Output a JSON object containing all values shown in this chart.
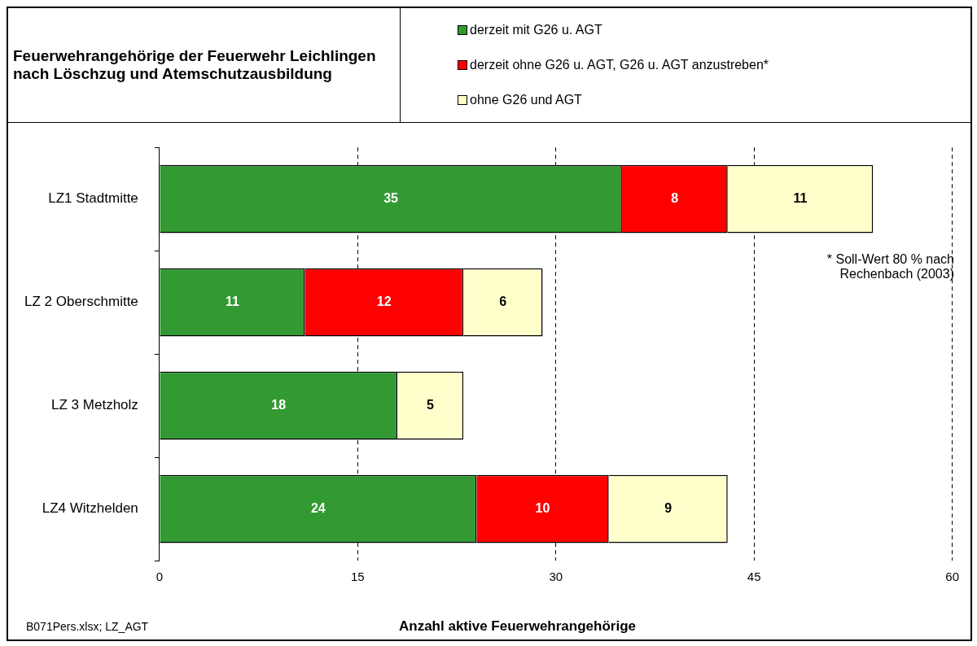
{
  "chart_data": {
    "type": "bar",
    "orientation": "horizontal",
    "stacked": true,
    "title": "Feuerwehrangehörige der Feuerwehr Leichlingen\nnach Löschzug und Atemschutzausbildung",
    "xlabel": "Anzahl aktive  Feuerwehrangehörige",
    "categories": [
      "LZ1 Stadtmitte",
      "LZ 2 Oberschmitte",
      "LZ 3 Metzholz",
      "LZ4 Witzhelden"
    ],
    "series": [
      {
        "name": "derzeit mit G26 u. AGT",
        "color": "#339933",
        "values": [
          35,
          11,
          18,
          24
        ]
      },
      {
        "name": "derzeit ohne G26 u. AGT, G26 u. AGT anzustreben*",
        "color": "#ff0000",
        "values": [
          8,
          12,
          null,
          10
        ]
      },
      {
        "name": "ohne G26 und AGT",
        "color": "#ffffcc",
        "values": [
          11,
          6,
          5,
          9
        ]
      }
    ],
    "xlim": [
      0,
      60
    ],
    "xticks": [
      0,
      15,
      30,
      45,
      60
    ],
    "grid": "x",
    "legend": "top right",
    "data_labels": true,
    "annotations": [
      "*  Soll-Wert 80 % nach\nRechenbach  (2003)",
      "B071Pers.xlsx; LZ_AGT"
    ]
  }
}
